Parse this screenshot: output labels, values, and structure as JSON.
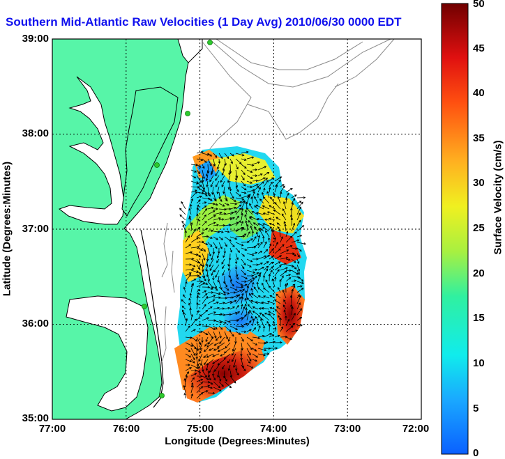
{
  "title": "Southern Mid-Atlantic Raw Velocities (1 Day Avg) 2010/06/30 0000 EDT",
  "chart_data": {
    "type": "heatmap",
    "xlabel": "Longitude (Degrees:Minutes)",
    "ylabel": "Latitude (Degrees:Minutes)",
    "x_ticks": [
      "77:00",
      "76:00",
      "75:00",
      "74:00",
      "73:00",
      "72:00"
    ],
    "y_ticks": [
      "39:00",
      "38:00",
      "37:00",
      "36:00",
      "35:00"
    ],
    "xlim": [
      -77,
      -72
    ],
    "ylim": [
      35,
      39
    ],
    "grid": true,
    "colorbar": {
      "label": "Surface Velocity (cm/s)",
      "ticks": [
        "0",
        "5",
        "10",
        "15",
        "20",
        "25",
        "30",
        "35",
        "40",
        "45",
        "50"
      ],
      "range": [
        0,
        50
      ]
    }
  },
  "colors": {
    "land": "#57f5a8",
    "coastline": "#000000",
    "bathymetry": "#888888",
    "title": "#1010ee",
    "station": "#2ec92e"
  }
}
